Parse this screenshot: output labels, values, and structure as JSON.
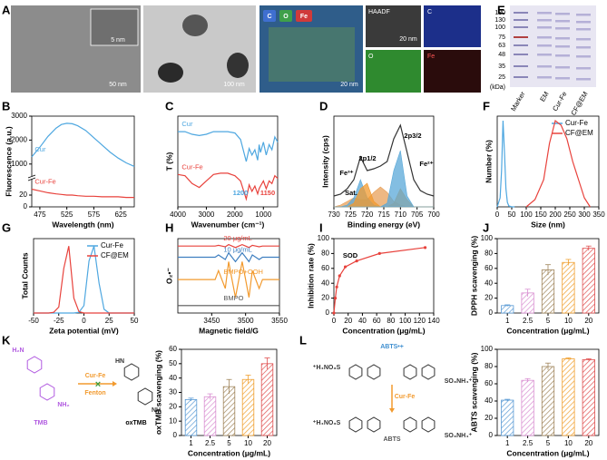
{
  "panel_letters": [
    "A",
    "B",
    "C",
    "D",
    "E",
    "F",
    "G",
    "H",
    "I",
    "J",
    "K",
    "L"
  ],
  "figure_a": {
    "scale_1": "5 nm",
    "scale_2": "50 nm",
    "scale_3": "100 nm",
    "map_elements": [
      "C",
      "O",
      "Fe"
    ],
    "scale_4": "20 nm",
    "haadf": "HAADF",
    "tile_c": "C",
    "scale_5": "20 nm",
    "tile_o": "O",
    "tile_fe": "Fe"
  },
  "figure_e": {
    "markers": [
      "180",
      "130",
      "100",
      "75",
      "63",
      "48",
      "35",
      "25"
    ],
    "unit": "(kDa)",
    "lanes": [
      "Marker",
      "EM",
      "Cur-Fe",
      "CF@EM"
    ]
  },
  "chart_data": [
    {
      "type": "line",
      "xlabel": "Wavelength (nm)",
      "ylabel": "Fluorescence (a.u.)",
      "xlim": [
        460,
        650
      ],
      "xticks": [
        475,
        525,
        575,
        625
      ],
      "ylim": [
        0,
        3000
      ],
      "ybreak": [
        40,
        500
      ],
      "yticks": [
        0,
        20,
        1000,
        2000,
        3000
      ],
      "legend": "inline",
      "x": [
        460,
        475,
        490,
        505,
        515,
        525,
        535,
        545,
        560,
        575,
        590,
        605,
        620,
        635,
        650
      ],
      "series": [
        {
          "name": "Cur",
          "color": "#4ea7e0",
          "values": [
            1300,
            1700,
            2150,
            2500,
            2650,
            2700,
            2680,
            2600,
            2400,
            2100,
            1800,
            1500,
            1250,
            1050,
            900
          ]
        },
        {
          "name": "Cur-Fe",
          "color": "#e8423c",
          "values": [
            30,
            27,
            24,
            22,
            21,
            20,
            20,
            19,
            18,
            18,
            17,
            17,
            17,
            16,
            16
          ]
        }
      ]
    },
    {
      "type": "line",
      "xlabel": "Wavenumber (cm⁻¹)",
      "ylabel": "T (%)",
      "xlim": [
        4000,
        500
      ],
      "xticks": [
        4000,
        3000,
        2000,
        1000
      ],
      "ylim": [
        30,
        100
      ],
      "legend": "inline",
      "x": [
        4000,
        3750,
        3500,
        3250,
        3000,
        2750,
        2500,
        2250,
        2000,
        1800,
        1600,
        1500,
        1400,
        1300,
        1200,
        1150,
        1100,
        1000,
        900,
        800,
        700,
        600,
        500
      ],
      "series": [
        {
          "name": "Cur",
          "color": "#4ea7e0",
          "values": [
            88,
            88,
            86,
            85,
            86,
            88,
            88,
            88,
            87,
            82,
            65,
            75,
            70,
            74,
            66,
            78,
            72,
            80,
            70,
            78,
            74,
            84,
            80
          ]
        },
        {
          "name": "Cur-Fe",
          "color": "#e8423c",
          "values": [
            55,
            54,
            48,
            45,
            50,
            55,
            56,
            56,
            54,
            50,
            36,
            47,
            42,
            46,
            40,
            44,
            46,
            50,
            44,
            50,
            48,
            54,
            52
          ]
        }
      ],
      "annotations": [
        {
          "text": "1200",
          "color": "#4ea7e0"
        },
        {
          "text": "1150",
          "color": "#e8423c"
        }
      ]
    },
    {
      "type": "line",
      "xlabel": "Binding energy (eV)",
      "ylabel": "Intensity (cps)",
      "xlim": [
        730,
        700
      ],
      "xticks": [
        730,
        725,
        720,
        715,
        710,
        705,
        700
      ],
      "ylim": [
        0,
        100
      ],
      "x": [
        730,
        728,
        726,
        724,
        722,
        720,
        718,
        716,
        714,
        712,
        710,
        708,
        706,
        704,
        702,
        700
      ],
      "series": [
        {
          "color": "#e8a05a",
          "fill": true,
          "values": [
            0,
            2,
            6,
            10,
            8,
            8,
            16,
            22,
            16,
            6,
            2,
            0,
            0,
            0,
            0,
            0
          ]
        },
        {
          "color": "#5aa8d8",
          "fill": true,
          "values": [
            0,
            0,
            2,
            10,
            30,
            10,
            2,
            0,
            0,
            0,
            0,
            0,
            0,
            0,
            0,
            0
          ]
        },
        {
          "color": "#f29a2e",
          "fill": true,
          "values": [
            0,
            0,
            0,
            4,
            20,
            26,
            6,
            0,
            0,
            4,
            20,
            8,
            0,
            0,
            0,
            0
          ]
        },
        {
          "color": "#5aa8d8",
          "fill": true,
          "values": [
            0,
            0,
            0,
            0,
            0,
            0,
            0,
            0,
            4,
            40,
            62,
            12,
            0,
            0,
            0,
            0
          ]
        },
        {
          "color": "#333333",
          "values": [
            12,
            14,
            20,
            30,
            55,
            40,
            42,
            45,
            50,
            75,
            90,
            60,
            30,
            18,
            14,
            12
          ]
        }
      ],
      "annotations": [
        {
          "text": "2p1/2",
          "color": "#000000"
        },
        {
          "text": "2p3/2",
          "color": "#000000"
        },
        {
          "text": "Fe³⁺",
          "color": "#000000"
        },
        {
          "text": "Fe²⁺",
          "color": "#000000"
        },
        {
          "text": "Sat.",
          "color": "#000000"
        }
      ]
    },
    {
      "type": "line",
      "xlabel": "Size (nm)",
      "ylabel": "Number (%)",
      "xlim": [
        0,
        350
      ],
      "xticks": [
        0,
        50,
        100,
        150,
        200,
        250,
        300,
        350
      ],
      "ylim": [
        0,
        100
      ],
      "legend": "upper right",
      "series": [
        {
          "name": "Cur-Fe",
          "color": "#4ea7e0",
          "x": [
            0,
            10,
            15,
            20,
            25,
            30,
            35,
            40,
            50,
            60
          ],
          "values": [
            0,
            10,
            40,
            95,
            60,
            20,
            5,
            1,
            0,
            0
          ]
        },
        {
          "name": "CF@EM",
          "color": "#e8423c",
          "x": [
            100,
            130,
            160,
            180,
            200,
            220,
            240,
            260,
            280,
            300,
            320
          ],
          "values": [
            0,
            8,
            30,
            70,
            95,
            90,
            75,
            50,
            30,
            10,
            0
          ]
        }
      ]
    },
    {
      "type": "line",
      "xlabel": "Zeta potential (mV)",
      "ylabel": "Total Counts",
      "xlim": [
        -50,
        50
      ],
      "xticks": [
        -50,
        -25,
        0,
        25,
        50
      ],
      "ylim": [
        0,
        100
      ],
      "legend": "upper right",
      "x": [
        -50,
        -45,
        -40,
        -35,
        -30,
        -25,
        -20,
        -15,
        -10,
        -5,
        0,
        5,
        10,
        15,
        20,
        25,
        30,
        35,
        40,
        45,
        50
      ],
      "series": [
        {
          "name": "Cur-Fe",
          "color": "#4ea7e0",
          "values": [
            0,
            0,
            0,
            0,
            0,
            0,
            0,
            0,
            0,
            1,
            10,
            70,
            90,
            40,
            5,
            0,
            0,
            0,
            0,
            0,
            0
          ]
        },
        {
          "name": "CF@EM",
          "color": "#e8423c",
          "values": [
            0,
            0,
            0,
            0,
            1,
            8,
            60,
            90,
            20,
            2,
            0,
            0,
            0,
            0,
            0,
            0,
            0,
            0,
            0,
            0,
            0
          ]
        }
      ]
    },
    {
      "type": "line",
      "xlabel": "Magnetic field/G",
      "ylabel": "O₂•⁻",
      "xlim": [
        3400,
        3550
      ],
      "xticks": [
        3450,
        3500,
        3550
      ],
      "ylim": [
        0,
        100
      ],
      "legend": "inline",
      "x": [
        3400,
        3405,
        3410,
        3415,
        3420,
        3425,
        3430,
        3435,
        3440,
        3445,
        3450,
        3455,
        3460,
        3465,
        3470,
        3475,
        3480,
        3485,
        3490,
        3495,
        3500,
        3505,
        3510,
        3515,
        3520,
        3525,
        3530,
        3535,
        3540,
        3545,
        3550
      ],
      "series": [
        {
          "name": "20 μg/mL",
          "color": "#e8423c",
          "values": [
            90,
            90,
            90,
            90,
            90,
            90,
            90,
            90,
            90,
            90,
            90,
            90,
            91,
            90,
            89,
            92,
            90,
            88,
            90,
            92,
            90,
            88,
            91,
            90,
            89,
            90,
            90,
            90,
            90,
            90,
            90
          ]
        },
        {
          "name": "10 μg/mL",
          "color": "#3f7fc0",
          "values": [
            75,
            75,
            75,
            75,
            75,
            75,
            75,
            75,
            75,
            75,
            75,
            75,
            78,
            75,
            72,
            81,
            75,
            69,
            75,
            81,
            75,
            69,
            78,
            75,
            72,
            75,
            75,
            75,
            75,
            75,
            75
          ]
        },
        {
          "name": "BMPO+OOH",
          "color": "#f29a2e",
          "values": [
            45,
            45,
            45,
            45,
            45,
            45,
            45,
            45,
            45,
            45,
            45,
            45,
            57,
            45,
            33,
            69,
            45,
            21,
            45,
            69,
            45,
            21,
            57,
            45,
            33,
            45,
            45,
            45,
            45,
            45,
            45
          ]
        },
        {
          "name": "BMPO",
          "color": "#555555",
          "values": [
            10,
            10,
            10,
            10,
            10,
            10,
            10,
            10,
            10,
            10,
            10,
            10,
            10,
            10,
            10,
            10,
            10,
            10,
            10,
            10,
            10,
            10,
            10,
            10,
            10,
            10,
            10,
            10,
            10,
            10,
            10
          ]
        }
      ]
    },
    {
      "type": "line",
      "xlabel": "Concentration (μg/mL)",
      "ylabel": "Inhibition rate (%)",
      "xlim": [
        0,
        140
      ],
      "xticks": [
        0,
        20,
        40,
        60,
        80,
        100,
        120,
        140
      ],
      "ylim": [
        0,
        100
      ],
      "yticks": [
        0,
        20,
        40,
        60,
        80,
        100
      ],
      "markers": true,
      "x": [
        0,
        2,
        4,
        8,
        16,
        32,
        64,
        128
      ],
      "series": [
        {
          "color": "#e8423c",
          "values": [
            0,
            20,
            35,
            50,
            62,
            70,
            80,
            88
          ]
        }
      ],
      "annotations": [
        {
          "text": "SOD",
          "color": "#000000"
        }
      ]
    },
    {
      "type": "bar",
      "xlabel": "Concentration (μg/mL)",
      "ylabel": "DPPH scavenging (%)",
      "categories": [
        "1",
        "2.5",
        "5",
        "10",
        "20"
      ],
      "values": [
        10,
        27,
        58,
        68,
        87
      ],
      "errors": [
        1,
        5,
        7,
        4,
        3
      ],
      "colors": [
        "#5b9bd5",
        "#d98fd1",
        "#a0855b",
        "#f0a030",
        "#e05050"
      ],
      "ylim": [
        0,
        100
      ],
      "yticks": [
        0,
        20,
        40,
        60,
        80,
        100
      ]
    },
    {
      "type": "bar",
      "xlabel": "Concentration (μg/mL)",
      "ylabel": "oxTMB scavenging (%)",
      "categories": [
        "1",
        "2.5",
        "5",
        "10",
        "20"
      ],
      "values": [
        25,
        27,
        34,
        39,
        50
      ],
      "errors": [
        1,
        2,
        5,
        3,
        4
      ],
      "colors": [
        "#5b9bd5",
        "#d98fd1",
        "#a0855b",
        "#f0a030",
        "#e05050"
      ],
      "ylim": [
        0,
        60
      ],
      "yticks": [
        0,
        10,
        20,
        30,
        40,
        50,
        60
      ]
    },
    {
      "type": "bar",
      "xlabel": "Concentration (μg/mL)",
      "ylabel": "ABTS scavenging (%)",
      "categories": [
        "1",
        "2.5",
        "5",
        "10",
        "20"
      ],
      "values": [
        41,
        64,
        80,
        89,
        88
      ],
      "errors": [
        1,
        2,
        4,
        1,
        1
      ],
      "colors": [
        "#5b9bd5",
        "#d98fd1",
        "#a0855b",
        "#f0a030",
        "#e05050"
      ],
      "ylim": [
        0,
        100
      ],
      "yticks": [
        0,
        20,
        40,
        60,
        80,
        100
      ]
    }
  ],
  "scheme_k": {
    "amine_1": "H₂N",
    "amine_2": "NH₂",
    "reactant": "TMB",
    "catalyst": "Cur-Fe",
    "reaction": "Fenton",
    "imine_1": "HN",
    "imine_2": "NH",
    "product": "oxTMB"
  },
  "scheme_l": {
    "radical": "ABTS•+",
    "group_1": "⁺H₄NO₃S",
    "group_2": "SO₃NH₄⁺",
    "catalyst": "Cur-Fe",
    "group_3": "⁺H₄NO₃S",
    "group_4": "SO₃NH₄⁺",
    "product": "ABTS"
  }
}
